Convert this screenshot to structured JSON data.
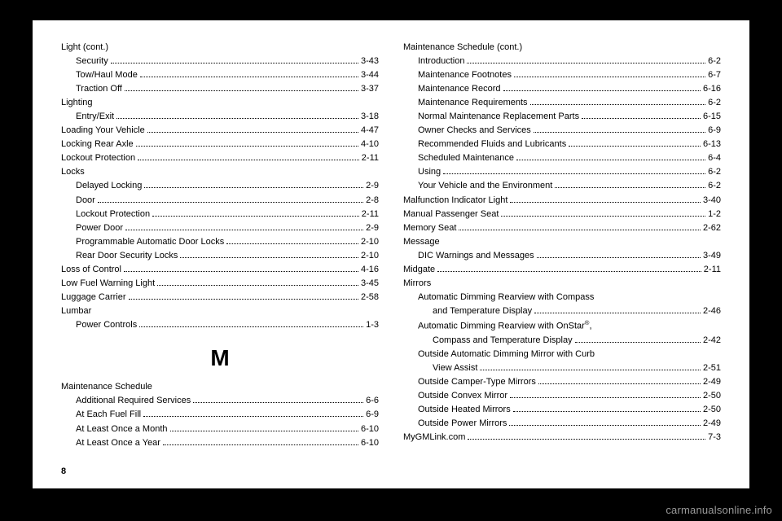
{
  "page_number": "8",
  "watermark": "carmanualsonline.info",
  "section_letter": "M",
  "left": [
    {
      "label": "Light (cont.)",
      "heading": true
    },
    {
      "label": "Security",
      "page": "3-43",
      "indent": 1
    },
    {
      "label": "Tow/Haul Mode",
      "page": "3-44",
      "indent": 1
    },
    {
      "label": "Traction Off",
      "page": "3-37",
      "indent": 1
    },
    {
      "label": "Lighting",
      "heading": true
    },
    {
      "label": "Entry/Exit",
      "page": "3-18",
      "indent": 1
    },
    {
      "label": "Loading Your Vehicle",
      "page": "4-47"
    },
    {
      "label": "Locking Rear Axle",
      "page": "4-10"
    },
    {
      "label": "Lockout Protection",
      "page": "2-11"
    },
    {
      "label": "Locks",
      "heading": true
    },
    {
      "label": "Delayed Locking",
      "page": "2-9",
      "indent": 1
    },
    {
      "label": "Door",
      "page": "2-8",
      "indent": 1
    },
    {
      "label": "Lockout Protection",
      "page": "2-11",
      "indent": 1
    },
    {
      "label": "Power Door",
      "page": "2-9",
      "indent": 1
    },
    {
      "label": "Programmable Automatic Door Locks",
      "page": "2-10",
      "indent": 1
    },
    {
      "label": "Rear Door Security Locks",
      "page": "2-10",
      "indent": 1
    },
    {
      "label": "Loss of Control",
      "page": "4-16"
    },
    {
      "label": "Low Fuel Warning Light",
      "page": "3-45"
    },
    {
      "label": "Luggage Carrier",
      "page": "2-58"
    },
    {
      "label": "Lumbar",
      "heading": true
    },
    {
      "label": "Power Controls",
      "page": "1-3",
      "indent": 1
    }
  ],
  "left2": [
    {
      "label": "Maintenance Schedule",
      "heading": true
    },
    {
      "label": "Additional Required Services",
      "page": "6-6",
      "indent": 1
    },
    {
      "label": "At Each Fuel Fill",
      "page": "6-9",
      "indent": 1
    },
    {
      "label": "At Least Once a Month",
      "page": "6-10",
      "indent": 1
    },
    {
      "label": "At Least Once a Year",
      "page": "6-10",
      "indent": 1
    }
  ],
  "right": [
    {
      "label": "Maintenance Schedule (cont.)",
      "heading": true
    },
    {
      "label": "Introduction",
      "page": "6-2",
      "indent": 1
    },
    {
      "label": "Maintenance Footnotes",
      "page": "6-7",
      "indent": 1
    },
    {
      "label": "Maintenance Record",
      "page": "6-16",
      "indent": 1
    },
    {
      "label": "Maintenance Requirements",
      "page": "6-2",
      "indent": 1
    },
    {
      "label": "Normal Maintenance Replacement Parts",
      "page": "6-15",
      "indent": 1
    },
    {
      "label": "Owner Checks and Services",
      "page": "6-9",
      "indent": 1
    },
    {
      "label": "Recommended Fluids and Lubricants",
      "page": "6-13",
      "indent": 1
    },
    {
      "label": "Scheduled Maintenance",
      "page": "6-4",
      "indent": 1
    },
    {
      "label": "Using",
      "page": "6-2",
      "indent": 1
    },
    {
      "label": "Your Vehicle and the Environment",
      "page": "6-2",
      "indent": 1
    },
    {
      "label": "Malfunction Indicator Light",
      "page": "3-40"
    },
    {
      "label": "Manual Passenger Seat",
      "page": "1-2"
    },
    {
      "label": "Memory Seat",
      "page": "2-62"
    },
    {
      "label": "Message",
      "heading": true
    },
    {
      "label": "DIC Warnings and Messages",
      "page": "3-49",
      "indent": 1
    },
    {
      "label": "Midgate",
      "page": "2-11"
    },
    {
      "label": "Mirrors",
      "heading": true
    },
    {
      "label": "Automatic Dimming Rearview with Compass",
      "indent": 1,
      "nowrap": true
    },
    {
      "label": "and Temperature Display",
      "page": "2-46",
      "indent": 2
    },
    {
      "label": "Automatic Dimming Rearview with OnStar®,",
      "indent": 1,
      "nowrap": true,
      "html": true
    },
    {
      "label": "Compass and Temperature Display",
      "page": "2-42",
      "indent": 2
    },
    {
      "label": "Outside Automatic Dimming Mirror with Curb",
      "indent": 1,
      "nowrap": true
    },
    {
      "label": "View Assist",
      "page": "2-51",
      "indent": 2
    },
    {
      "label": "Outside Camper-Type Mirrors",
      "page": "2-49",
      "indent": 1
    },
    {
      "label": "Outside Convex Mirror",
      "page": "2-50",
      "indent": 1
    },
    {
      "label": "Outside Heated Mirrors",
      "page": "2-50",
      "indent": 1
    },
    {
      "label": "Outside Power Mirrors",
      "page": "2-49",
      "indent": 1
    },
    {
      "label": "MyGMLink.com",
      "page": "7-3"
    }
  ]
}
